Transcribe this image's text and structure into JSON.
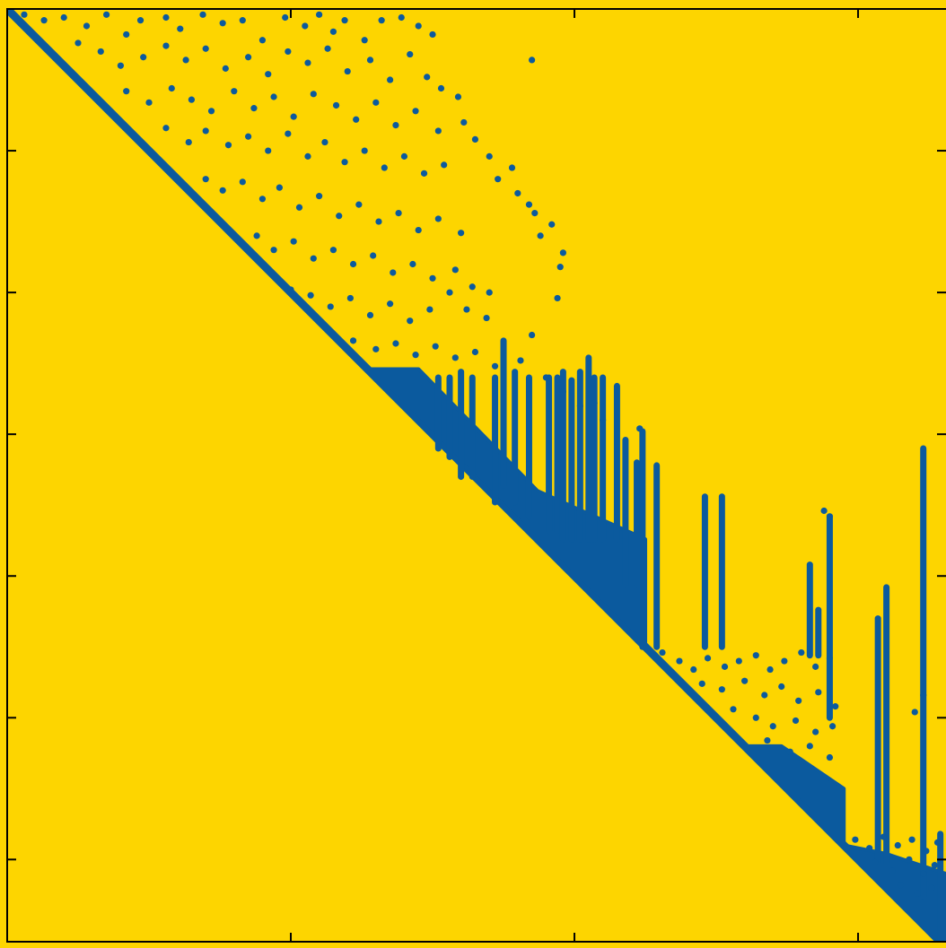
{
  "chart_data": {
    "type": "scatter",
    "xlim": [
      0,
      3310
    ],
    "ylim": [
      0,
      3290
    ],
    "y_inverted": true,
    "xticks": [
      1000,
      2000,
      3000
    ],
    "yticks": [
      500,
      1000,
      1500,
      2000,
      2500,
      3000
    ],
    "background": "#fdd500",
    "series": [
      {
        "mode": "line",
        "color": "#0b5a9e",
        "x": [
          0,
          3290
        ],
        "y": [
          0,
          3290
        ]
      },
      {
        "mode": "fill",
        "color": "#0b5a9e",
        "x": [
          1270,
          1450,
          1870,
          2250,
          2250
        ],
        "y": [
          1270,
          1270,
          1700,
          1870,
          2250
        ]
      },
      {
        "mode": "fill",
        "color": "#0b5a9e",
        "x": [
          2600,
          2730,
          2950,
          2950
        ],
        "y": [
          2600,
          2600,
          2750,
          2950
        ]
      },
      {
        "mode": "fill",
        "color": "#0b5a9e",
        "x": [
          2950,
          3100,
          3310,
          3310,
          3290
        ],
        "y": [
          2950,
          2980,
          3050,
          3290,
          3290
        ]
      },
      {
        "mode": "segments",
        "color": "#0b5a9e",
        "x": [
          1520,
          1560,
          1600,
          1640,
          1720,
          1750,
          1790,
          1840,
          1910,
          1940,
          1960,
          1990,
          2020,
          2050,
          2070,
          2100,
          2150,
          2180,
          2220,
          2240,
          2290,
          2460,
          2520,
          2830,
          2860,
          2900,
          3070,
          3100,
          3230,
          3290
        ],
        "y_top": [
          1300,
          1300,
          1280,
          1300,
          1300,
          1170,
          1280,
          1300,
          1300,
          1300,
          1280,
          1310,
          1280,
          1230,
          1300,
          1300,
          1330,
          1520,
          1600,
          1490,
          1610,
          1720,
          1720,
          1960,
          2120,
          1790,
          2150,
          2040,
          1550,
          2910
        ],
        "y_bottom": [
          1550,
          1580,
          1650,
          1650,
          1740,
          1680,
          1740,
          1790,
          1840,
          1840,
          1870,
          1870,
          1870,
          1870,
          1870,
          1870,
          1870,
          2030,
          2030,
          2250,
          2250,
          2250,
          2250,
          2280,
          2280,
          2500,
          3010,
          3010,
          3130,
          3290
        ]
      },
      {
        "mode": "markers",
        "color": "#0b5a9e",
        "x": [
          60,
          130,
          200,
          280,
          350,
          420,
          470,
          560,
          610,
          690,
          760,
          830,
          900,
          980,
          1050,
          1100,
          1150,
          1190,
          1260,
          1320,
          1390,
          1450,
          1500,
          250,
          330,
          400,
          480,
          560,
          630,
          700,
          770,
          850,
          920,
          990,
          1060,
          1130,
          1200,
          1280,
          1350,
          1420,
          1480,
          1530,
          1590,
          420,
          500,
          580,
          650,
          720,
          800,
          870,
          940,
          1010,
          1080,
          1160,
          1230,
          1300,
          1370,
          1440,
          1520,
          1610,
          1650,
          560,
          640,
          700,
          780,
          850,
          920,
          990,
          1060,
          1120,
          1190,
          1260,
          1330,
          1400,
          1470,
          1540,
          1700,
          1730,
          1780,
          1800,
          1840,
          700,
          760,
          830,
          900,
          960,
          1030,
          1100,
          1170,
          1240,
          1310,
          1380,
          1450,
          1520,
          1600,
          1860,
          1920,
          1960,
          1880,
          880,
          940,
          1010,
          1080,
          1150,
          1220,
          1290,
          1360,
          1430,
          1500,
          1580,
          1640,
          1700,
          1950,
          1940,
          1000,
          1070,
          1140,
          1210,
          1280,
          1350,
          1420,
          1490,
          1560,
          1620,
          1690,
          1850,
          1150,
          1220,
          1300,
          1370,
          1440,
          1510,
          1580,
          1650,
          1720,
          1810,
          1850,
          1900,
          1960,
          2020,
          2070,
          2100,
          2230,
          2310,
          2370,
          2420,
          2470,
          2530,
          2580,
          2640,
          2690,
          2740,
          2800,
          2850,
          2900,
          2450,
          2520,
          2600,
          2670,
          2730,
          2790,
          2860,
          2920,
          2560,
          2640,
          2700,
          2780,
          2850,
          2910,
          2680,
          2760,
          2830,
          2900,
          2880,
          2900,
          2990,
          3040,
          3090,
          3140,
          3190,
          3240,
          3280,
          3060,
          3120,
          3180,
          3230,
          3270,
          3150,
          3210,
          3260,
          3200,
          3230
        ],
        "y": [
          20,
          40,
          30,
          60,
          20,
          90,
          40,
          30,
          70,
          20,
          50,
          40,
          110,
          30,
          60,
          20,
          80,
          40,
          110,
          40,
          30,
          60,
          90,
          120,
          150,
          200,
          170,
          130,
          180,
          140,
          210,
          170,
          230,
          150,
          190,
          140,
          220,
          180,
          250,
          160,
          240,
          280,
          310,
          290,
          330,
          280,
          320,
          360,
          290,
          350,
          310,
          380,
          300,
          340,
          390,
          330,
          410,
          360,
          430,
          400,
          460,
          420,
          470,
          430,
          480,
          450,
          500,
          440,
          520,
          470,
          540,
          500,
          560,
          520,
          580,
          550,
          520,
          600,
          560,
          650,
          690,
          600,
          640,
          610,
          670,
          630,
          700,
          660,
          730,
          690,
          750,
          720,
          780,
          740,
          790,
          720,
          760,
          860,
          800,
          800,
          850,
          820,
          880,
          850,
          900,
          870,
          930,
          900,
          950,
          920,
          980,
          1000,
          910,
          1020,
          990,
          1010,
          1050,
          1020,
          1080,
          1040,
          1100,
          1060,
          1000,
          1060,
          1090,
          180,
          1150,
          1170,
          1200,
          1180,
          1220,
          1190,
          1230,
          1210,
          1260,
          1240,
          1150,
          1300,
          1350,
          1400,
          1390,
          1450,
          1480,
          2270,
          2300,
          2330,
          2290,
          2320,
          2300,
          2280,
          2330,
          2300,
          2270,
          2320,
          2290,
          2380,
          2400,
          2370,
          2420,
          2390,
          2440,
          2410,
          2460,
          2470,
          2500,
          2530,
          2510,
          2550,
          2530,
          2580,
          2620,
          2600,
          2640,
          1770,
          1790,
          2930,
          2960,
          2920,
          2950,
          2930,
          2970,
          2940,
          3010,
          3040,
          3000,
          3050,
          3020,
          3090,
          3120,
          3100,
          2480,
          2420
        ]
      }
    ]
  }
}
